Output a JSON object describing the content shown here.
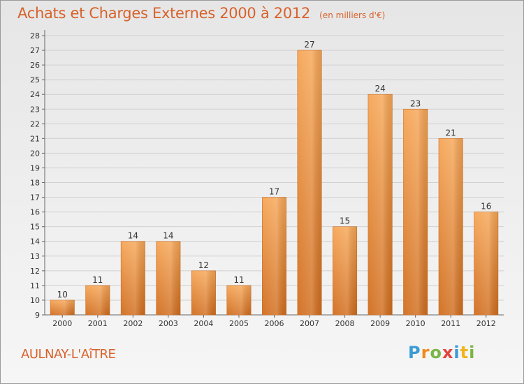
{
  "header": {
    "title": "Achats et Charges Externes 2000 à 2012",
    "unit": "(en milliers d'€)"
  },
  "footer": {
    "town": "AULNAY-L'AîTRE",
    "brand": "Proxiti",
    "brand_letters": [
      {
        "char": "P",
        "color": "#3a9bd5"
      },
      {
        "char": "r",
        "color": "#f08a1c"
      },
      {
        "char": "o",
        "color": "#7ab648"
      },
      {
        "char": "x",
        "color": "#e2453c"
      },
      {
        "char": "i",
        "color": "#3a9bd5"
      },
      {
        "char": "t",
        "color": "#f0b51c"
      },
      {
        "char": "i",
        "color": "#7ab648"
      }
    ]
  },
  "chart_data": {
    "type": "bar",
    "categories": [
      "2000",
      "2001",
      "2002",
      "2003",
      "2004",
      "2005",
      "2006",
      "2007",
      "2008",
      "2009",
      "2010",
      "2011",
      "2012"
    ],
    "values": [
      10,
      11,
      14,
      14,
      12,
      11,
      17,
      27,
      15,
      24,
      23,
      21,
      16
    ],
    "value_labels": [
      "10",
      "11",
      "14",
      "14",
      "12",
      "11",
      "17",
      "27",
      "15",
      "24",
      "23",
      "21",
      "16"
    ],
    "ylim": [
      9,
      28
    ],
    "yticks": [
      "9",
      "10",
      "11",
      "12",
      "13",
      "14",
      "15",
      "16",
      "17",
      "18",
      "19",
      "20",
      "21",
      "22",
      "23",
      "24",
      "25",
      "26",
      "27",
      "28"
    ],
    "grid": true,
    "bar_color": "#f0913a",
    "bar_color_dark": "#d06a1c"
  }
}
